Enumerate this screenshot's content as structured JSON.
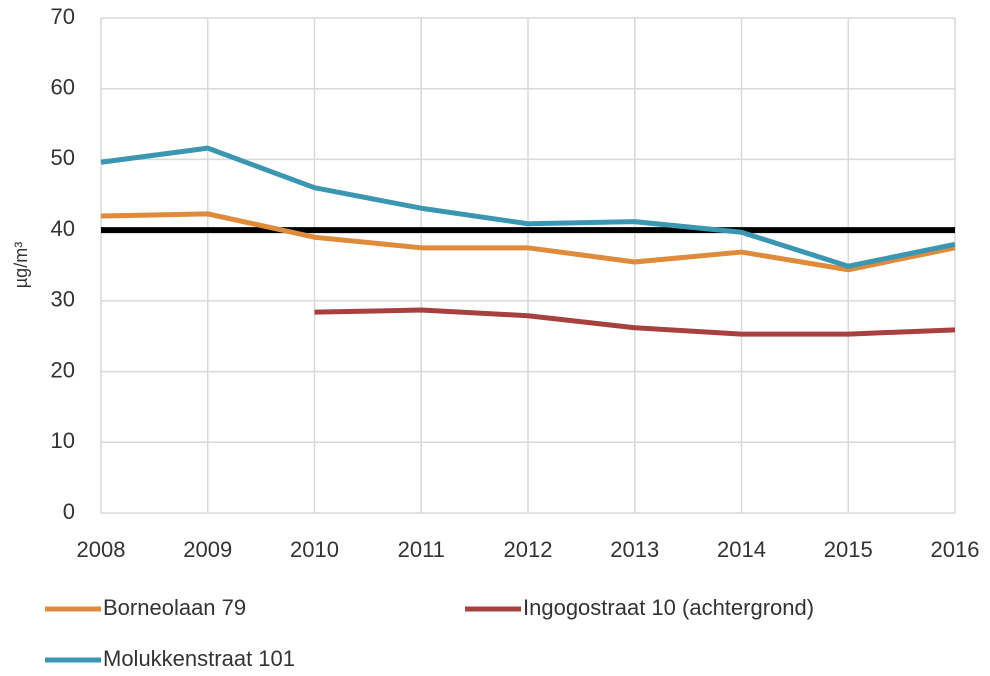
{
  "chart_data": {
    "type": "line",
    "y_label": "µg/m³",
    "x": [
      2008,
      2009,
      2010,
      2011,
      2012,
      2013,
      2014,
      2015,
      2016
    ],
    "xlim": [
      2008,
      2016
    ],
    "xticks": [
      2008,
      2009,
      2010,
      2011,
      2012,
      2013,
      2014,
      2015,
      2016
    ],
    "ylim": [
      0,
      70
    ],
    "yticks": [
      0,
      10,
      20,
      30,
      40,
      50,
      60,
      70
    ],
    "grid": true,
    "legend": "bottom",
    "reference_line": {
      "value": 40,
      "color": "#000000"
    },
    "series": [
      {
        "name": "Borneolaan 79",
        "color": "#e08a3c",
        "values": [
          42.0,
          42.3,
          39.0,
          37.5,
          37.5,
          35.5,
          36.9,
          34.4,
          37.5
        ]
      },
      {
        "name": "Ingogostraat 10 (achtergrond)",
        "color": "#a8403f",
        "values": [
          null,
          null,
          28.4,
          28.7,
          27.9,
          26.2,
          25.3,
          25.3,
          25.9
        ]
      },
      {
        "name": "Molukkenstraat 101",
        "color": "#3b97b1",
        "values": [
          49.6,
          51.6,
          46.0,
          43.1,
          40.9,
          41.2,
          39.7,
          34.9,
          38.0
        ]
      }
    ]
  }
}
